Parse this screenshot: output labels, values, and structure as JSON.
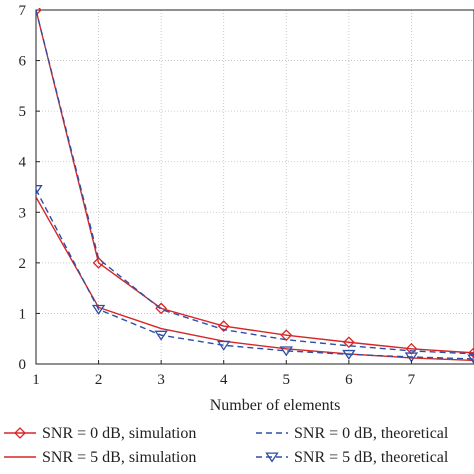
{
  "chart_data": {
    "type": "line",
    "title": "",
    "xlabel": "Number of elements",
    "ylabel": "",
    "xlim": [
      1,
      8
    ],
    "ylim": [
      0,
      7
    ],
    "xticks": [
      1,
      2,
      3,
      4,
      5,
      6,
      7
    ],
    "yticks": [
      0,
      1,
      2,
      3,
      4,
      5,
      6,
      7
    ],
    "grid": true,
    "legend_position": "bottom",
    "x": [
      1,
      2,
      3,
      4,
      5,
      6,
      7,
      8
    ],
    "series": [
      {
        "name": "SNR = 0 dB, simulation",
        "color": "#d62728",
        "style": "solid",
        "marker": "diamond",
        "values": [
          7.0,
          2.0,
          1.1,
          0.75,
          0.57,
          0.43,
          0.3,
          0.22
        ]
      },
      {
        "name": "SNR = 5 dB, simulation",
        "color": "#d62728",
        "style": "solid",
        "marker": "none",
        "values": [
          3.3,
          1.12,
          0.7,
          0.45,
          0.3,
          0.2,
          0.12,
          0.07
        ]
      },
      {
        "name": "SNR = 0 dB, theoretical",
        "color": "#2e4fa8",
        "style": "dashed",
        "marker": "none",
        "values": [
          7.0,
          2.08,
          1.08,
          0.68,
          0.48,
          0.36,
          0.26,
          0.2
        ]
      },
      {
        "name": "SNR = 5 dB, theoretical",
        "color": "#2e4fa8",
        "style": "dashed",
        "marker": "triangle-down",
        "values": [
          3.45,
          1.08,
          0.57,
          0.37,
          0.26,
          0.19,
          0.14,
          0.1
        ]
      }
    ]
  }
}
